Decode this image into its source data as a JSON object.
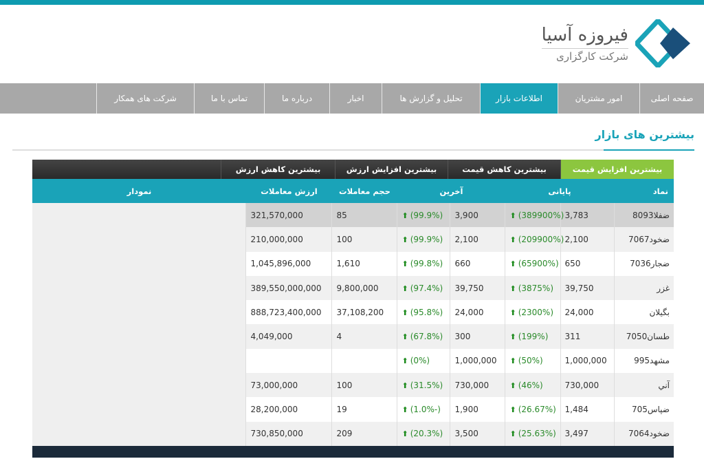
{
  "brand": {
    "name": "فیروزه آسیا",
    "subtitle": "شرکت کارگزاری"
  },
  "nav": [
    "صفحه اصلی",
    "امور مشتریان",
    "اطلاعات بازار",
    "تحلیل و گزارش ها",
    "اخبار",
    "درباره ما",
    "تماس با ما",
    "شرکت های همکار"
  ],
  "section_title": "بیشترین های بازار",
  "tabs": [
    "بیشترین افزایش قیمت",
    "بیشترین کاهش قیمت",
    "بیشترین افزایش ارزش",
    "بیشترین کاهش ارزش"
  ],
  "columns": {
    "symbol": "نماد",
    "close": "پایانی",
    "last": "آخرین",
    "volume": "حجم معاملات",
    "value": "ارزش معاملات",
    "chart": "نمودار"
  },
  "rows": [
    [
      "ضفلا8093",
      "3,783",
      "(389900%)",
      "3,900",
      "(99.9%)",
      "85",
      "321,570,000"
    ],
    [
      "ضخود7067",
      "2,100",
      "(209900%)",
      "2,100",
      "(99.9%)",
      "100",
      "210,000,000"
    ],
    [
      "ضجار7036",
      "650",
      "(65900%)",
      "660",
      "(99.8%)",
      "1,610",
      "1,045,896,000"
    ],
    [
      "غزر",
      "39,750",
      "(3875%)",
      "39,750",
      "(97.4%)",
      "9,800,000",
      "389,550,000,000"
    ],
    [
      "بگیلان",
      "24,000",
      "(2300%)",
      "24,000",
      "(95.8%)",
      "37,108,200",
      "888,723,400,000"
    ],
    [
      "طسان7050",
      "311",
      "(199%)",
      "300",
      "(67.8%)",
      "4",
      "4,049,000"
    ],
    [
      "مشهد995",
      "1,000,000",
      "(50%)",
      "1,000,000",
      "(0%)",
      "",
      ""
    ],
    [
      "آني",
      "730,000",
      "(46%)",
      "730,000",
      "(31.5%)",
      "100",
      "73,000,000"
    ],
    [
      "ضپاس705",
      "1,484",
      "(26.67%)",
      "1,900",
      "(1.0%-)",
      "19",
      "28,200,000"
    ],
    [
      "ضخود7064",
      "3,497",
      "(25.63%)",
      "3,500",
      "(20.3%)",
      "209",
      "730,850,000"
    ]
  ],
  "colors": {
    "accent": "#1aa3b8",
    "active_tab": "#8cc63f",
    "up": "#1b8a1b"
  },
  "icons": {
    "up": "arrow-up-icon"
  }
}
